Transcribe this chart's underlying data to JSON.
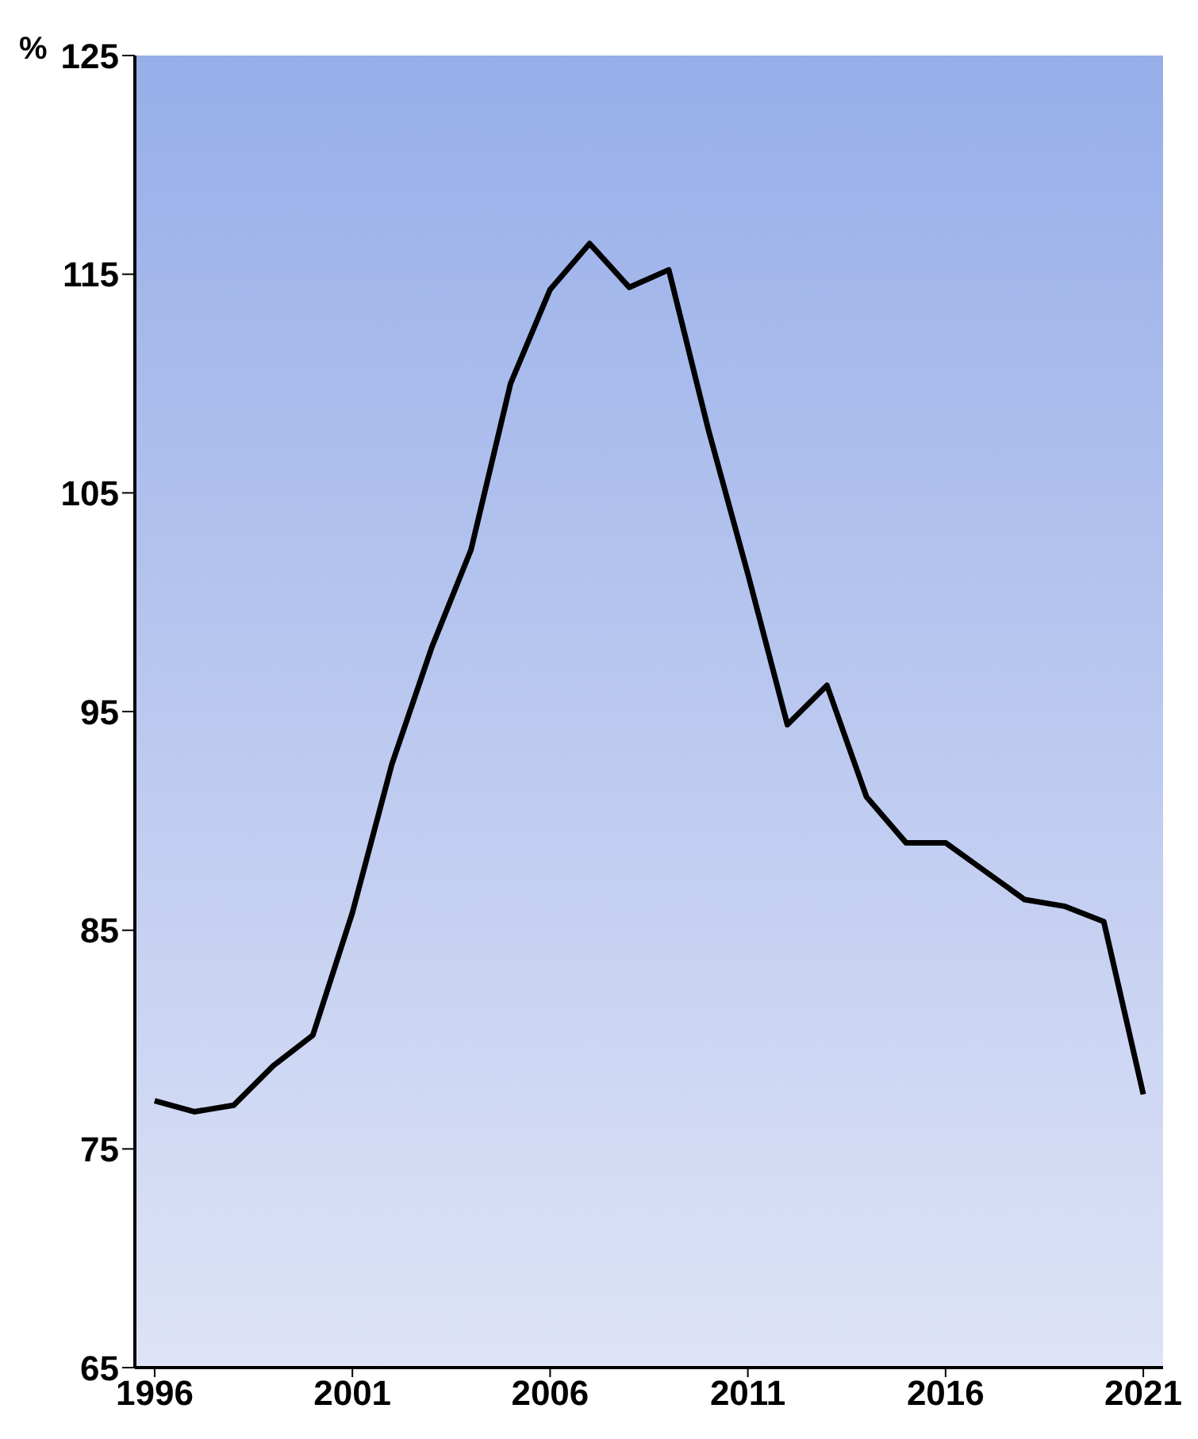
{
  "chart_data": {
    "type": "line",
    "ylabel": "%",
    "x": [
      1996,
      1997,
      1998,
      1999,
      2000,
      2001,
      2002,
      2003,
      2004,
      2005,
      2006,
      2007,
      2008,
      2009,
      2010,
      2011,
      2012,
      2013,
      2014,
      2015,
      2016,
      2017,
      2018,
      2019,
      2020,
      2021
    ],
    "series": [
      {
        "color": "#000000",
        "values": [
          77.2,
          76.7,
          77.0,
          78.8,
          80.2,
          85.8,
          92.6,
          97.9,
          102.4,
          110.0,
          114.3,
          116.4,
          114.4,
          115.2,
          107.9,
          101.3,
          94.4,
          96.2,
          91.1,
          89.0,
          89.0,
          87.7,
          86.4,
          86.1,
          85.4,
          77.5
        ]
      }
    ],
    "xlim": [
      1995.5,
      2021.5
    ],
    "xticks": [
      1996,
      2001,
      2006,
      2011,
      2016,
      2021
    ],
    "ylim": [
      65,
      125
    ],
    "yticks": [
      65,
      75,
      85,
      95,
      105,
      115,
      125
    ],
    "grid": false,
    "legend": false,
    "marker": "none",
    "line_style": "solid"
  }
}
